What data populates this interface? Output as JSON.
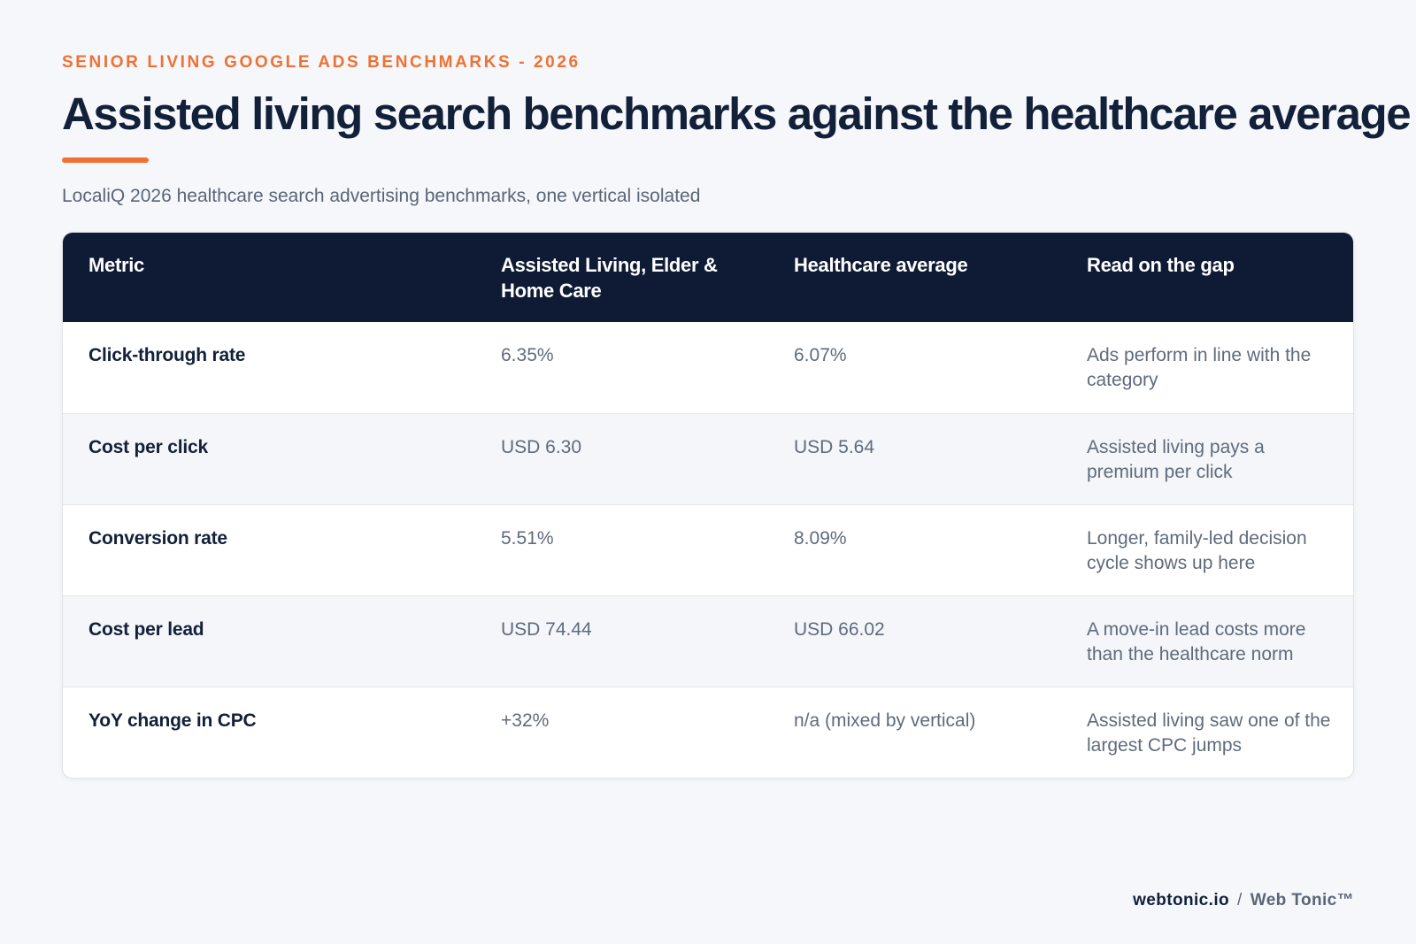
{
  "eyebrow": "SENIOR LIVING GOOGLE ADS BENCHMARKS - 2026",
  "title": "Assisted living search benchmarks against the healthcare average",
  "subtitle": "LocaliQ 2026 healthcare search advertising benchmarks, one vertical isolated",
  "colors": {
    "accent": "#ef7133",
    "header_bg": "#0f1b34",
    "title_text": "#12203a",
    "page_bg": "#f5f7fa",
    "row_alt_bg": "#f4f6f9"
  },
  "table": {
    "headers": [
      "Metric",
      "Assisted Living, Elder & Home Care",
      "Healthcare average",
      "Read on the gap"
    ],
    "rows": [
      {
        "metric": "Click-through rate",
        "assisted": "6.35%",
        "healthcare": "6.07%",
        "note": "Ads perform in line with the category"
      },
      {
        "metric": "Cost per click",
        "assisted": "USD 6.30",
        "healthcare": "USD 5.64",
        "note": "Assisted living pays a premium per click"
      },
      {
        "metric": "Conversion rate",
        "assisted": "5.51%",
        "healthcare": "8.09%",
        "note": "Longer, family-led decision cycle shows up here"
      },
      {
        "metric": "Cost per lead",
        "assisted": "USD 74.44",
        "healthcare": "USD 66.02",
        "note": "A move-in lead costs more than the healthcare norm"
      },
      {
        "metric": "YoY change in CPC",
        "assisted": "+32%",
        "healthcare": "n/a (mixed by vertical)",
        "note": "Assisted living saw one of the largest CPC jumps"
      }
    ]
  },
  "footer": {
    "domain": "webtonic.io",
    "separator": "/",
    "brand": "Web Tonic™"
  }
}
